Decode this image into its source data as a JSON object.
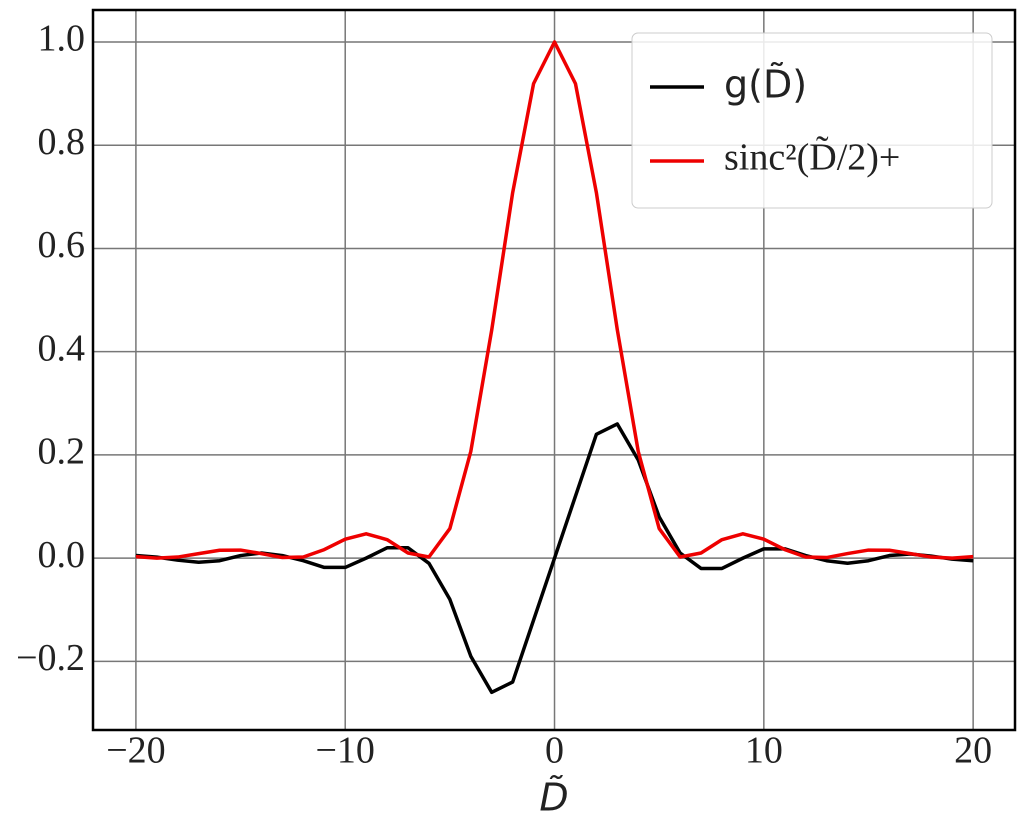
{
  "chart_data": {
    "type": "line",
    "xlabel": "D̃",
    "x": [
      -20,
      -19,
      -18,
      -17,
      -16,
      -15,
      -14,
      -13,
      -12,
      -11,
      -10,
      -9,
      -8,
      -7,
      -6,
      -5,
      -4,
      -3,
      -2,
      -1,
      0,
      1,
      2,
      3,
      4,
      5,
      6,
      7,
      8,
      9,
      10,
      11,
      12,
      13,
      14,
      15,
      16,
      17,
      18,
      19,
      20
    ],
    "series": [
      {
        "name": "g(D̃)",
        "color": "#000000",
        "values": [
          0.005,
          0.002,
          -0.004,
          -0.008,
          -0.005,
          0.005,
          0.01,
          0.005,
          -0.005,
          -0.018,
          -0.018,
          0.0,
          0.02,
          0.02,
          -0.01,
          -0.08,
          -0.19,
          -0.26,
          -0.24,
          -0.12,
          0,
          0.12,
          0.24,
          0.26,
          0.19,
          0.08,
          0.01,
          -0.02,
          -0.02,
          0.0,
          0.018,
          0.018,
          0.005,
          -0.005,
          -0.01,
          -0.005,
          0.005,
          0.008,
          0.004,
          -0.002,
          -0.005
        ]
      },
      {
        "name": "sinc²(D̃/2)+",
        "color": "#ee0000",
        "values": [
          0.003,
          0.0001,
          0.0021,
          0.0088,
          0.0153,
          0.0156,
          0.0088,
          0.0011,
          0.0022,
          0.0165,
          0.0368,
          0.0472,
          0.0358,
          0.01,
          0.0022,
          0.0573,
          0.2067,
          0.4422,
          0.7081,
          0.9194,
          1,
          0.9194,
          0.7081,
          0.4422,
          0.2067,
          0.0573,
          0.0022,
          0.01,
          0.0358,
          0.0472,
          0.0368,
          0.0165,
          0.0022,
          0.0011,
          0.0088,
          0.0156,
          0.0153,
          0.0088,
          0.0021,
          0.0001,
          0.003
        ]
      }
    ],
    "xlim": [
      -22.05,
      22.0
    ],
    "ylim": [
      -0.333,
      1.062
    ],
    "xticks": [
      {
        "value": -20,
        "label": "−20"
      },
      {
        "value": -10,
        "label": "−10"
      },
      0,
      10,
      20
    ],
    "yticks": [
      {
        "value": -0.2,
        "label": "−0.2"
      },
      {
        "value": 0,
        "label": "0.0"
      },
      {
        "value": 0.2,
        "label": "0.2"
      },
      {
        "value": 0.4,
        "label": "0.4"
      },
      {
        "value": 0.6,
        "label": "0.6"
      },
      {
        "value": 0.8,
        "label": "0.8"
      },
      {
        "value": 1,
        "label": "1.0"
      }
    ],
    "grid": true,
    "legend": "upper right"
  }
}
